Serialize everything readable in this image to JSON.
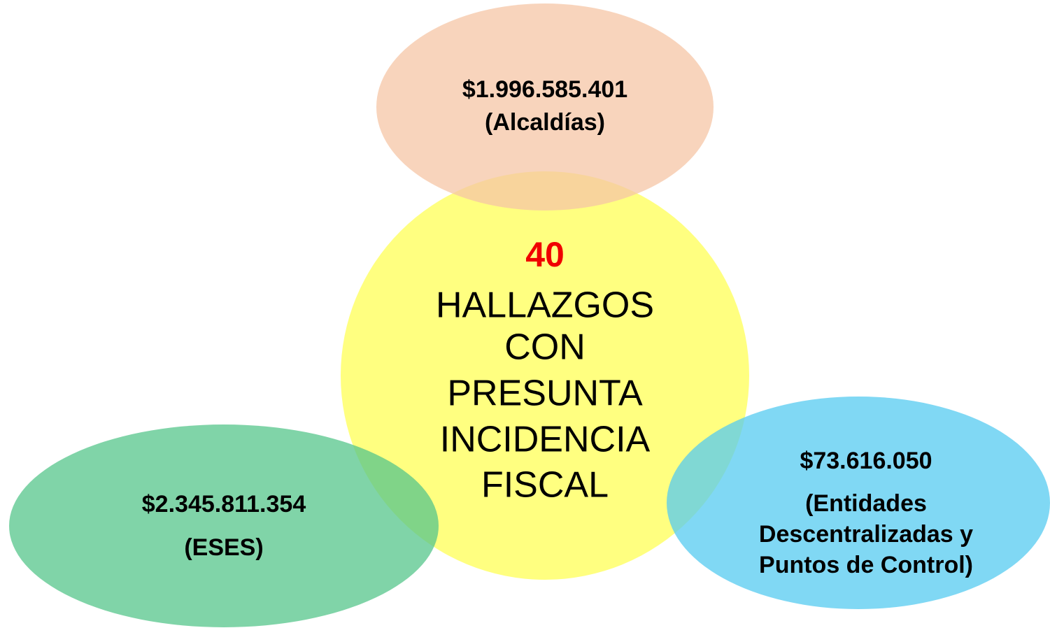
{
  "center": {
    "count": "40",
    "label_lines": [
      "HALLAZGOS",
      "CON",
      "PRESUNTA",
      "INCIDENCIA",
      "FISCAL"
    ]
  },
  "nodes": [
    {
      "amount": "$1.996.585.401",
      "label_lines": [
        "(Alcaldías)"
      ]
    },
    {
      "amount": "$2.345.811.354",
      "label_lines": [
        "(ESES)"
      ]
    },
    {
      "amount": "$73.616.050",
      "label_lines": [
        "(Entidades",
        "Descentralizadas y",
        "Puntos de Control)"
      ]
    }
  ]
}
